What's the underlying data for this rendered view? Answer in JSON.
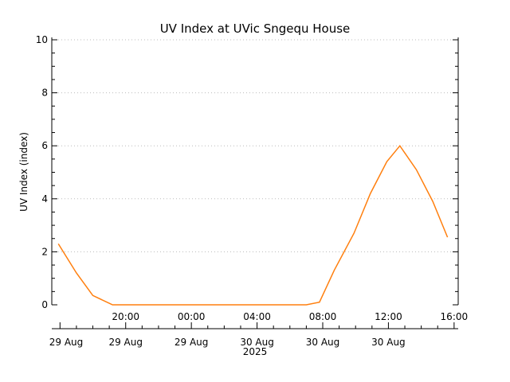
{
  "chart_data": {
    "type": "line",
    "title": "UV Index at UVic Sngequ House",
    "ylabel": "UV Index (index)",
    "xlabel": "",
    "ylim": [
      0,
      10
    ],
    "xlim_hours": [
      15.5,
      40.25
    ],
    "yticks": [
      "0",
      "2",
      "4",
      "6",
      "8",
      "10"
    ],
    "ygrid": [
      2,
      4,
      6,
      8,
      10
    ],
    "xticks": [
      {
        "value": 20,
        "time": "20:00",
        "date": "29 Aug"
      },
      {
        "value": 24,
        "time": "00:00",
        "date": "29 Aug"
      },
      {
        "value": 28,
        "time": "04:00",
        "date": "30 Aug"
      },
      {
        "value": 32,
        "time": "08:00",
        "date": "30 Aug"
      },
      {
        "value": 36,
        "time": "12:00",
        "date": "30 Aug"
      },
      {
        "value": 40,
        "time": "16:00",
        "date": ""
      }
    ],
    "first_date_label": "29 Aug",
    "year_label": "2025",
    "grid": true,
    "series": [
      {
        "color": "#ff7f0e",
        "x": [
          15.9,
          17.0,
          18.0,
          19.2,
          20.0,
          24.0,
          28.0,
          31.0,
          31.8,
          32.7,
          33.9,
          34.9,
          35.9,
          36.7,
          37.7,
          38.7,
          39.6
        ],
        "y": [
          2.3,
          1.2,
          0.35,
          0.0,
          0.0,
          0.0,
          0.0,
          0.0,
          0.1,
          1.3,
          2.7,
          4.2,
          5.4,
          6.0,
          5.1,
          3.9,
          2.55
        ]
      }
    ]
  }
}
